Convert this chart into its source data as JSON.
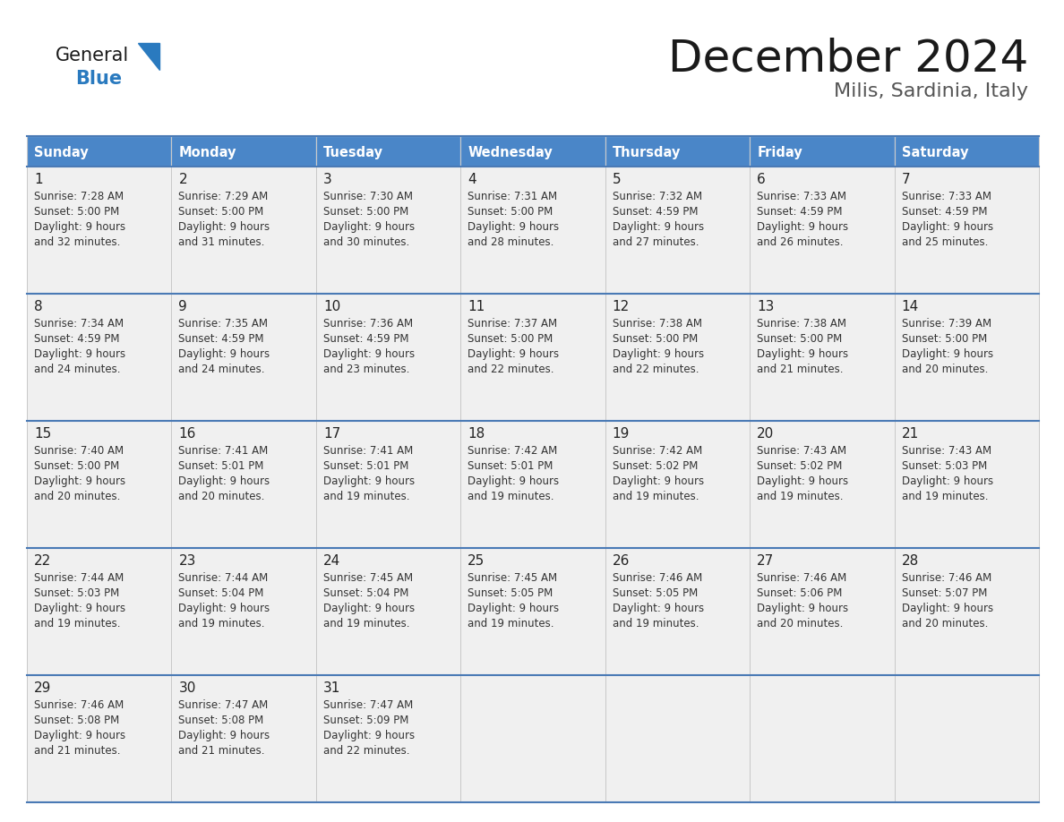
{
  "title": "December 2024",
  "subtitle": "Milis, Sardinia, Italy",
  "days_of_week": [
    "Sunday",
    "Monday",
    "Tuesday",
    "Wednesday",
    "Thursday",
    "Friday",
    "Saturday"
  ],
  "header_bg": "#4a86c8",
  "header_text": "#ffffff",
  "cell_bg": "#f0f0f0",
  "border_color_blue": "#4a7ab5",
  "border_color_light": "#c8c8c8",
  "day_num_color": "#222222",
  "cell_text_color": "#333333",
  "title_color": "#1a1a1a",
  "subtitle_color": "#555555",
  "logo_general_color": "#1a1a1a",
  "logo_blue_color": "#2a7abf",
  "calendar_data": [
    [
      {
        "day": 1,
        "sunrise": "7:28 AM",
        "sunset": "5:00 PM",
        "daylight_hours": 9,
        "daylight_minutes": 32
      },
      {
        "day": 2,
        "sunrise": "7:29 AM",
        "sunset": "5:00 PM",
        "daylight_hours": 9,
        "daylight_minutes": 31
      },
      {
        "day": 3,
        "sunrise": "7:30 AM",
        "sunset": "5:00 PM",
        "daylight_hours": 9,
        "daylight_minutes": 30
      },
      {
        "day": 4,
        "sunrise": "7:31 AM",
        "sunset": "5:00 PM",
        "daylight_hours": 9,
        "daylight_minutes": 28
      },
      {
        "day": 5,
        "sunrise": "7:32 AM",
        "sunset": "4:59 PM",
        "daylight_hours": 9,
        "daylight_minutes": 27
      },
      {
        "day": 6,
        "sunrise": "7:33 AM",
        "sunset": "4:59 PM",
        "daylight_hours": 9,
        "daylight_minutes": 26
      },
      {
        "day": 7,
        "sunrise": "7:33 AM",
        "sunset": "4:59 PM",
        "daylight_hours": 9,
        "daylight_minutes": 25
      }
    ],
    [
      {
        "day": 8,
        "sunrise": "7:34 AM",
        "sunset": "4:59 PM",
        "daylight_hours": 9,
        "daylight_minutes": 24
      },
      {
        "day": 9,
        "sunrise": "7:35 AM",
        "sunset": "4:59 PM",
        "daylight_hours": 9,
        "daylight_minutes": 24
      },
      {
        "day": 10,
        "sunrise": "7:36 AM",
        "sunset": "4:59 PM",
        "daylight_hours": 9,
        "daylight_minutes": 23
      },
      {
        "day": 11,
        "sunrise": "7:37 AM",
        "sunset": "5:00 PM",
        "daylight_hours": 9,
        "daylight_minutes": 22
      },
      {
        "day": 12,
        "sunrise": "7:38 AM",
        "sunset": "5:00 PM",
        "daylight_hours": 9,
        "daylight_minutes": 22
      },
      {
        "day": 13,
        "sunrise": "7:38 AM",
        "sunset": "5:00 PM",
        "daylight_hours": 9,
        "daylight_minutes": 21
      },
      {
        "day": 14,
        "sunrise": "7:39 AM",
        "sunset": "5:00 PM",
        "daylight_hours": 9,
        "daylight_minutes": 20
      }
    ],
    [
      {
        "day": 15,
        "sunrise": "7:40 AM",
        "sunset": "5:00 PM",
        "daylight_hours": 9,
        "daylight_minutes": 20
      },
      {
        "day": 16,
        "sunrise": "7:41 AM",
        "sunset": "5:01 PM",
        "daylight_hours": 9,
        "daylight_minutes": 20
      },
      {
        "day": 17,
        "sunrise": "7:41 AM",
        "sunset": "5:01 PM",
        "daylight_hours": 9,
        "daylight_minutes": 19
      },
      {
        "day": 18,
        "sunrise": "7:42 AM",
        "sunset": "5:01 PM",
        "daylight_hours": 9,
        "daylight_minutes": 19
      },
      {
        "day": 19,
        "sunrise": "7:42 AM",
        "sunset": "5:02 PM",
        "daylight_hours": 9,
        "daylight_minutes": 19
      },
      {
        "day": 20,
        "sunrise": "7:43 AM",
        "sunset": "5:02 PM",
        "daylight_hours": 9,
        "daylight_minutes": 19
      },
      {
        "day": 21,
        "sunrise": "7:43 AM",
        "sunset": "5:03 PM",
        "daylight_hours": 9,
        "daylight_minutes": 19
      }
    ],
    [
      {
        "day": 22,
        "sunrise": "7:44 AM",
        "sunset": "5:03 PM",
        "daylight_hours": 9,
        "daylight_minutes": 19
      },
      {
        "day": 23,
        "sunrise": "7:44 AM",
        "sunset": "5:04 PM",
        "daylight_hours": 9,
        "daylight_minutes": 19
      },
      {
        "day": 24,
        "sunrise": "7:45 AM",
        "sunset": "5:04 PM",
        "daylight_hours": 9,
        "daylight_minutes": 19
      },
      {
        "day": 25,
        "sunrise": "7:45 AM",
        "sunset": "5:05 PM",
        "daylight_hours": 9,
        "daylight_minutes": 19
      },
      {
        "day": 26,
        "sunrise": "7:46 AM",
        "sunset": "5:05 PM",
        "daylight_hours": 9,
        "daylight_minutes": 19
      },
      {
        "day": 27,
        "sunrise": "7:46 AM",
        "sunset": "5:06 PM",
        "daylight_hours": 9,
        "daylight_minutes": 20
      },
      {
        "day": 28,
        "sunrise": "7:46 AM",
        "sunset": "5:07 PM",
        "daylight_hours": 9,
        "daylight_minutes": 20
      }
    ],
    [
      {
        "day": 29,
        "sunrise": "7:46 AM",
        "sunset": "5:08 PM",
        "daylight_hours": 9,
        "daylight_minutes": 21
      },
      {
        "day": 30,
        "sunrise": "7:47 AM",
        "sunset": "5:08 PM",
        "daylight_hours": 9,
        "daylight_minutes": 21
      },
      {
        "day": 31,
        "sunrise": "7:47 AM",
        "sunset": "5:09 PM",
        "daylight_hours": 9,
        "daylight_minutes": 22
      },
      null,
      null,
      null,
      null
    ]
  ],
  "num_rows": 5,
  "num_cols": 7
}
